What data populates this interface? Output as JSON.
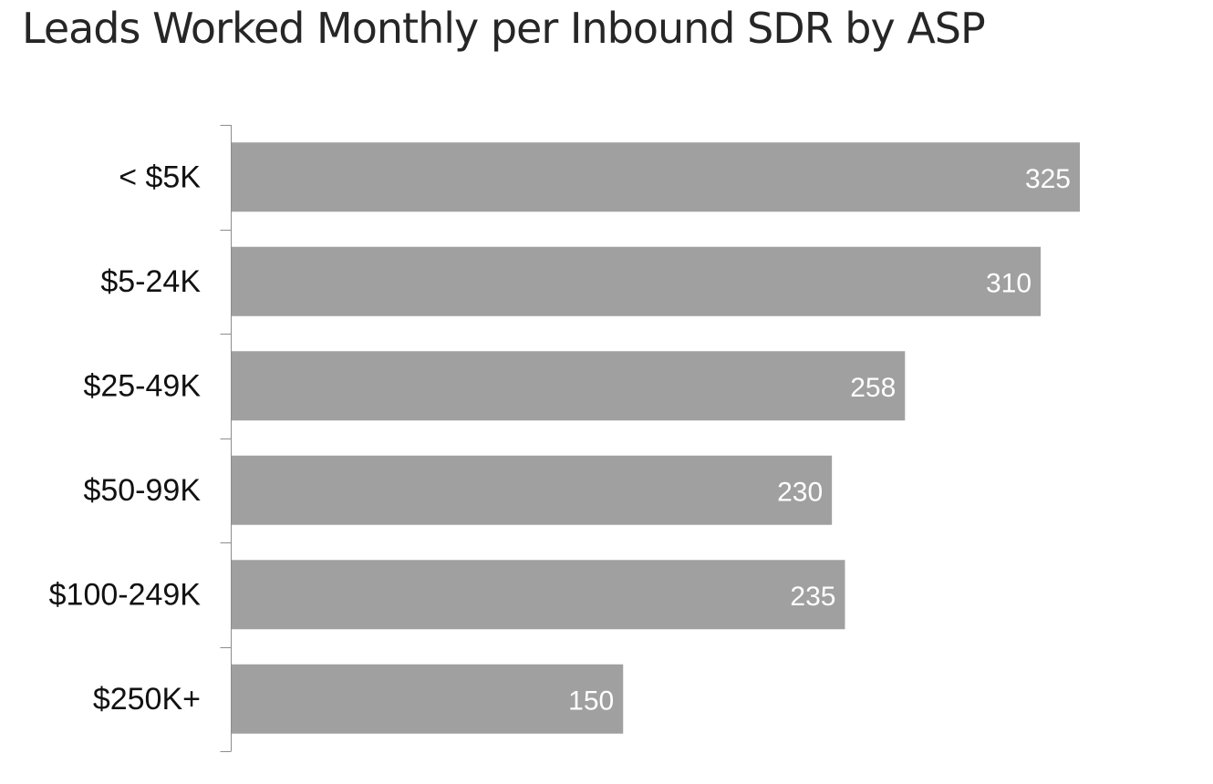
{
  "chart_data": {
    "type": "bar",
    "orientation": "horizontal",
    "title": "Leads Worked Monthly per Inbound SDR by ASP",
    "xlabel": "",
    "ylabel": "",
    "categories": [
      "< $5K",
      "$5-24K",
      "$25-49K",
      "$50-99K",
      "$100-249K",
      "$250K+"
    ],
    "values": [
      325,
      310,
      258,
      230,
      235,
      150
    ],
    "xlim": [
      0,
      325
    ],
    "grid": false,
    "legend": "none",
    "data_labels": true,
    "bar_color": "#a0a0a0",
    "label_color": "#ffffff"
  }
}
